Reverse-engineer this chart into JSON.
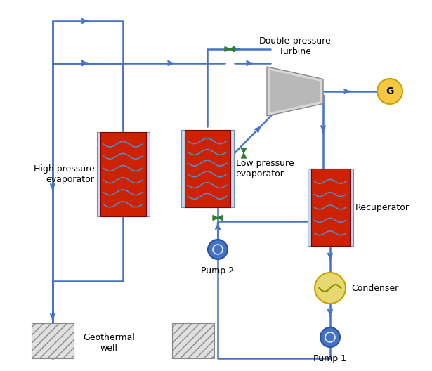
{
  "title": "",
  "bg_color": "#ffffff",
  "line_color": "#4472c4",
  "line_width": 1.8,
  "arrow_color": "#4472c4",
  "valve_color": "#2e7d32",
  "component_colors": {
    "evaporator_red": "#cc2200",
    "evaporator_blue_light": "#c5d8f0",
    "recuperator_red": "#cc2200",
    "recuperator_blue_light": "#c5d8f0",
    "turbine_light": "#d0d0d0",
    "turbine_dark": "#a0a0a0",
    "generator_fill": "#f5c842",
    "generator_stroke": "#c8a000",
    "pump_fill": "#4472c4",
    "pump_stroke": "#2a52a0",
    "condenser_fill": "#e8d870",
    "condenser_stroke": "#c8a000",
    "geothermal_hatch": "#c8c8c8"
  },
  "labels": {
    "double_pressure_turbine": "Double-pressure\nTurbine",
    "high_pressure_evaporator": "High pressure\nevaporator",
    "low_pressure_evaporator": "Low pressure\nevaporator",
    "recuperator": "Recuperator",
    "condenser": "Condenser",
    "pump1": "Pump 1",
    "pump2": "Pump 2",
    "geothermal_well": "Geothermal\nwell",
    "generator": "G"
  },
  "font_size": 9,
  "label_font_size": 9
}
